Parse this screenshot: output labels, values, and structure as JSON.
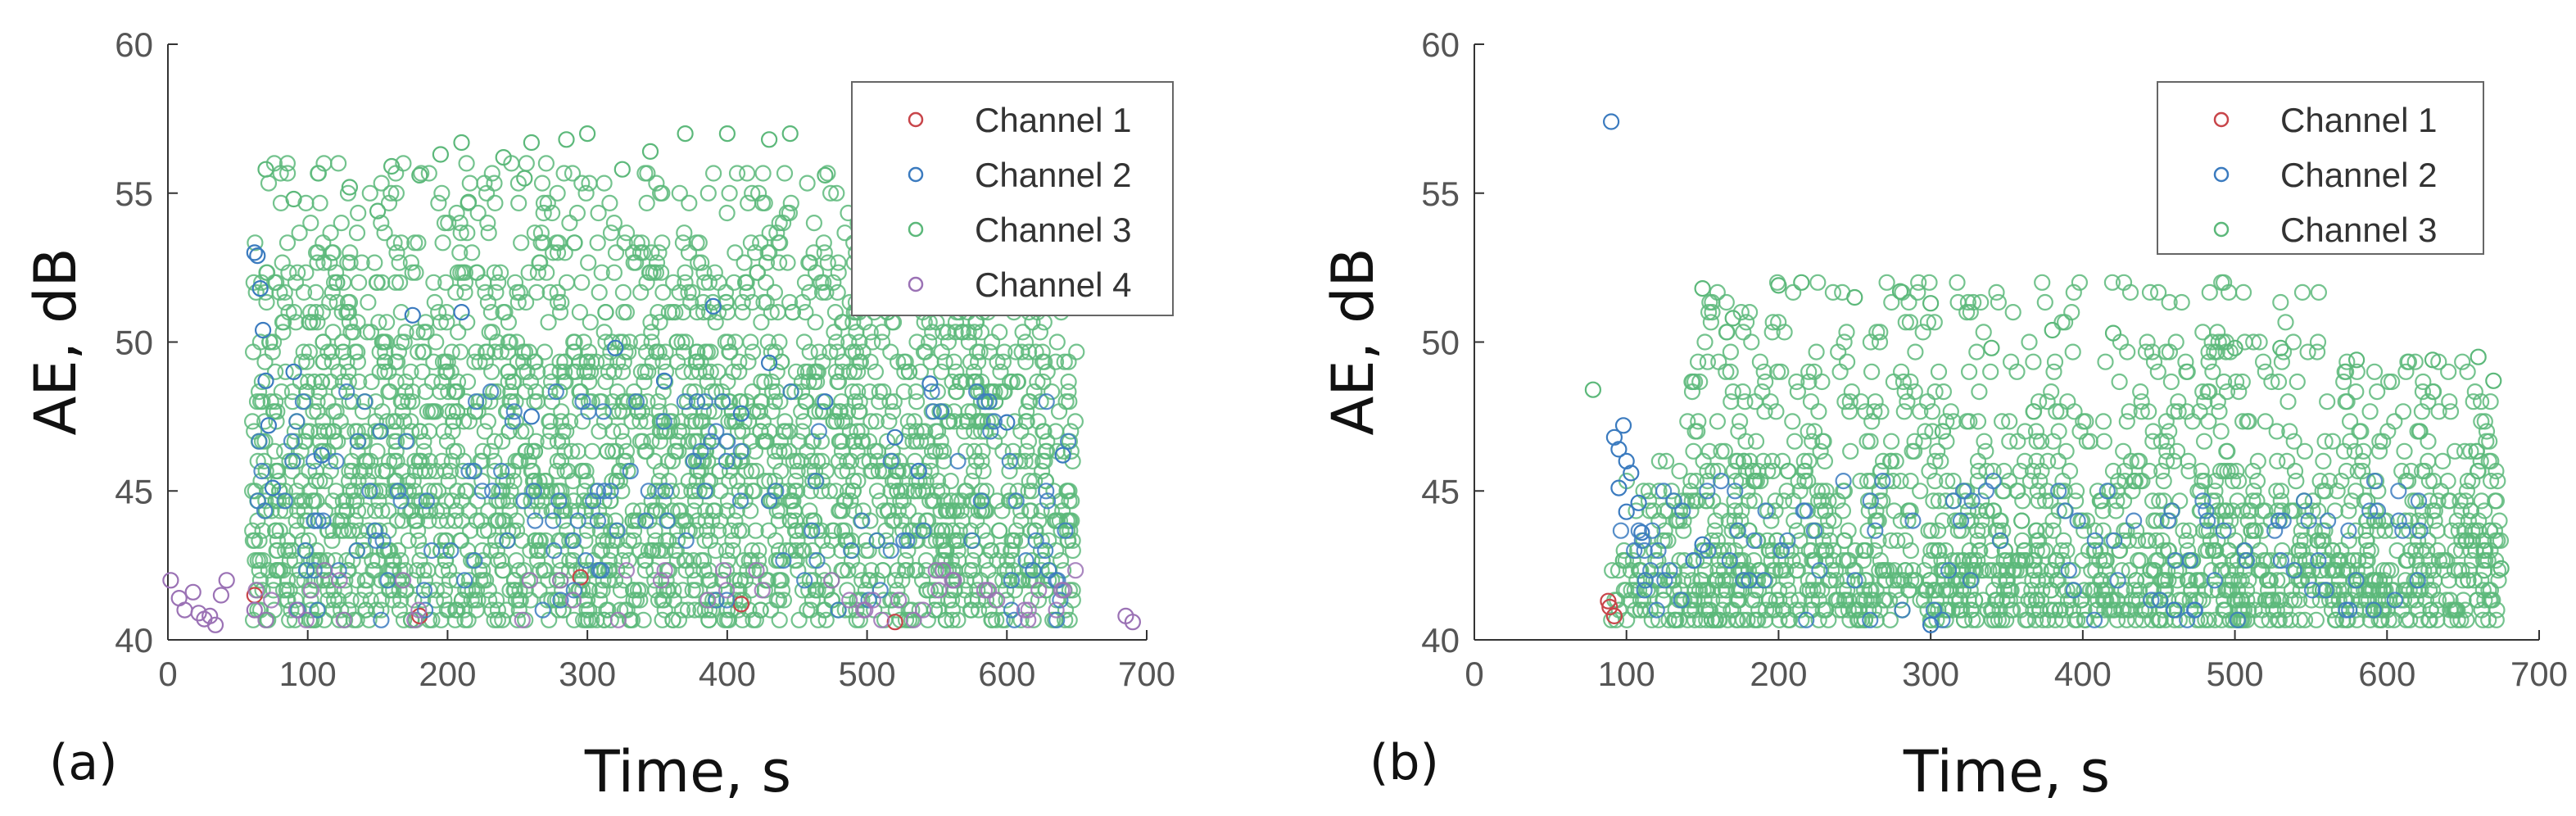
{
  "colors": {
    "channel_1": "#c8454a",
    "channel_2": "#3b7bbf",
    "channel_3": "#5cb87a",
    "channel_4": "#9b72b5"
  },
  "chart_data": [
    {
      "type": "scatter",
      "panel_label": "(a)",
      "xlabel": "Time, s",
      "ylabel": "AE, dB",
      "xlim": [
        0,
        700
      ],
      "ylim": [
        40,
        60
      ],
      "xticks": [
        0,
        100,
        200,
        300,
        400,
        500,
        600,
        700
      ],
      "yticks": [
        40,
        45,
        50,
        55,
        60
      ],
      "grid": false,
      "legend_position": "top-right",
      "series": [
        {
          "name": "Channel 1",
          "color": "#c8454a",
          "points": [
            [
              62,
              41.5
            ],
            [
              180,
              40.8
            ],
            [
              295,
              42.1
            ],
            [
              410,
              41.2
            ],
            [
              520,
              40.6
            ]
          ],
          "density_blocks": []
        },
        {
          "name": "Channel 2",
          "color": "#3b7bbf",
          "points": [
            [
              62,
              53.0
            ],
            [
              64,
              52.9
            ],
            [
              66,
              51.8
            ],
            [
              68,
              50.4
            ],
            [
              70,
              48.7
            ],
            [
              72,
              47.2
            ],
            [
              75,
              45.1
            ],
            [
              90,
              49.0
            ],
            [
              110,
              46.2
            ],
            [
              175,
              50.9
            ],
            [
              210,
              51.0
            ],
            [
              260,
              47.5
            ],
            [
              320,
              49.8
            ],
            [
              355,
              48.7
            ],
            [
              390,
              51.2
            ],
            [
              410,
              47.6
            ],
            [
              430,
              49.3
            ],
            [
              470,
              48.0
            ],
            [
              520,
              46.8
            ],
            [
              545,
              48.6
            ],
            [
              600,
              47.3
            ],
            [
              640,
              46.2
            ]
          ],
          "density_blocks": [
            {
              "x_range": [
                60,
                650
              ],
              "y_range": [
                40.5,
                48.5
              ],
              "count": 150
            }
          ]
        },
        {
          "name": "Channel 3",
          "color": "#5cb87a",
          "points": [
            [
              70,
              55.8
            ],
            [
              90,
              54.8
            ],
            [
              130,
              55.2
            ],
            [
              160,
              55.9
            ],
            [
              195,
              56.3
            ],
            [
              210,
              56.7
            ],
            [
              240,
              56.2
            ],
            [
              260,
              56.7
            ],
            [
              285,
              56.8
            ],
            [
              300,
              57.0
            ],
            [
              345,
              56.4
            ],
            [
              370,
              57.0
            ],
            [
              400,
              57.0
            ],
            [
              430,
              56.8
            ],
            [
              445,
              57.0
            ],
            [
              470,
              55.6
            ],
            [
              505,
              55.4
            ],
            [
              255,
              55.5
            ],
            [
              325,
              55.8
            ],
            [
              150,
              54.4
            ],
            [
              215,
              54.7
            ],
            [
              180,
              55.6
            ]
          ],
          "density_blocks": [
            {
              "x_range": [
                60,
                650
              ],
              "y_range": [
                40.5,
                46.0
              ],
              "count": 1300
            },
            {
              "x_range": [
                60,
                650
              ],
              "y_range": [
                46.0,
                50.0
              ],
              "count": 800
            },
            {
              "x_range": [
                60,
                640
              ],
              "y_range": [
                50.0,
                53.5
              ],
              "count": 420
            },
            {
              "x_range": [
                70,
                520
              ],
              "y_range": [
                53.5,
                56.0
              ],
              "count": 120
            }
          ]
        },
        {
          "name": "Channel 4",
          "color": "#9b72b5",
          "points": [
            [
              2,
              42.0
            ],
            [
              8,
              41.4
            ],
            [
              12,
              41.0
            ],
            [
              18,
              41.6
            ],
            [
              22,
              40.9
            ],
            [
              26,
              40.7
            ],
            [
              30,
              40.8
            ],
            [
              34,
              40.5
            ],
            [
              38,
              41.5
            ],
            [
              42,
              42.0
            ],
            [
              62,
              41.0
            ],
            [
              685,
              40.8
            ],
            [
              690,
              40.6
            ]
          ],
          "density_blocks": [
            {
              "x_range": [
                60,
                650
              ],
              "y_range": [
                40.5,
                42.5
              ],
              "count": 50
            }
          ]
        }
      ]
    },
    {
      "type": "scatter",
      "panel_label": "(b)",
      "xlabel": "Time, s",
      "ylabel": "AE, dB",
      "xlim": [
        0,
        700
      ],
      "ylim": [
        40,
        60
      ],
      "xticks": [
        0,
        100,
        200,
        300,
        400,
        500,
        600,
        700
      ],
      "yticks": [
        40,
        45,
        50,
        55,
        60
      ],
      "grid": false,
      "legend_position": "top-right",
      "series": [
        {
          "name": "Channel 1",
          "color": "#c8454a",
          "points": [
            [
              88,
              41.3
            ],
            [
              89,
              41.1
            ],
            [
              92,
              40.8
            ]
          ],
          "density_blocks": []
        },
        {
          "name": "Channel 2",
          "color": "#3b7bbf",
          "points": [
            [
              90,
              57.4
            ],
            [
              92,
              46.8
            ],
            [
              95,
              46.4
            ],
            [
              98,
              47.2
            ],
            [
              100,
              46.0
            ],
            [
              103,
              45.6
            ],
            [
              95,
              45.1
            ],
            [
              108,
              44.6
            ],
            [
              100,
              44.3
            ],
            [
              110,
              43.6
            ],
            [
              150,
              43.2
            ],
            [
              300,
              40.5
            ],
            [
              460,
              41.0
            ]
          ],
          "density_blocks": [
            {
              "x_range": [
                85,
                670
              ],
              "y_range": [
                40.5,
                45.5
              ],
              "count": 110
            }
          ]
        },
        {
          "name": "Channel 3",
          "color": "#5cb87a",
          "points": [
            [
              78,
              48.4
            ],
            [
              150,
              51.8
            ],
            [
              170,
              50.8
            ],
            [
              200,
              51.9
            ],
            [
              215,
              52.0
            ],
            [
              250,
              51.5
            ],
            [
              280,
              51.7
            ],
            [
              300,
              51.3
            ],
            [
              340,
              49.8
            ],
            [
              380,
              50.4
            ],
            [
              420,
              50.3
            ],
            [
              500,
              49.8
            ],
            [
              530,
              49.8
            ],
            [
              580,
              49.4
            ],
            [
              630,
              49.4
            ],
            [
              660,
              49.5
            ],
            [
              670,
              48.7
            ],
            [
              675,
              42.4
            ]
          ],
          "density_blocks": [
            {
              "x_range": [
                90,
                675
              ],
              "y_range": [
                40.5,
                43.0
              ],
              "count": 950
            },
            {
              "x_range": [
                100,
                675
              ],
              "y_range": [
                43.0,
                46.0
              ],
              "count": 520
            },
            {
              "x_range": [
                140,
                670
              ],
              "y_range": [
                46.0,
                49.5
              ],
              "count": 280
            },
            {
              "x_range": [
                150,
                560
              ],
              "y_range": [
                49.5,
                52.0
              ],
              "count": 110
            }
          ]
        }
      ]
    }
  ]
}
